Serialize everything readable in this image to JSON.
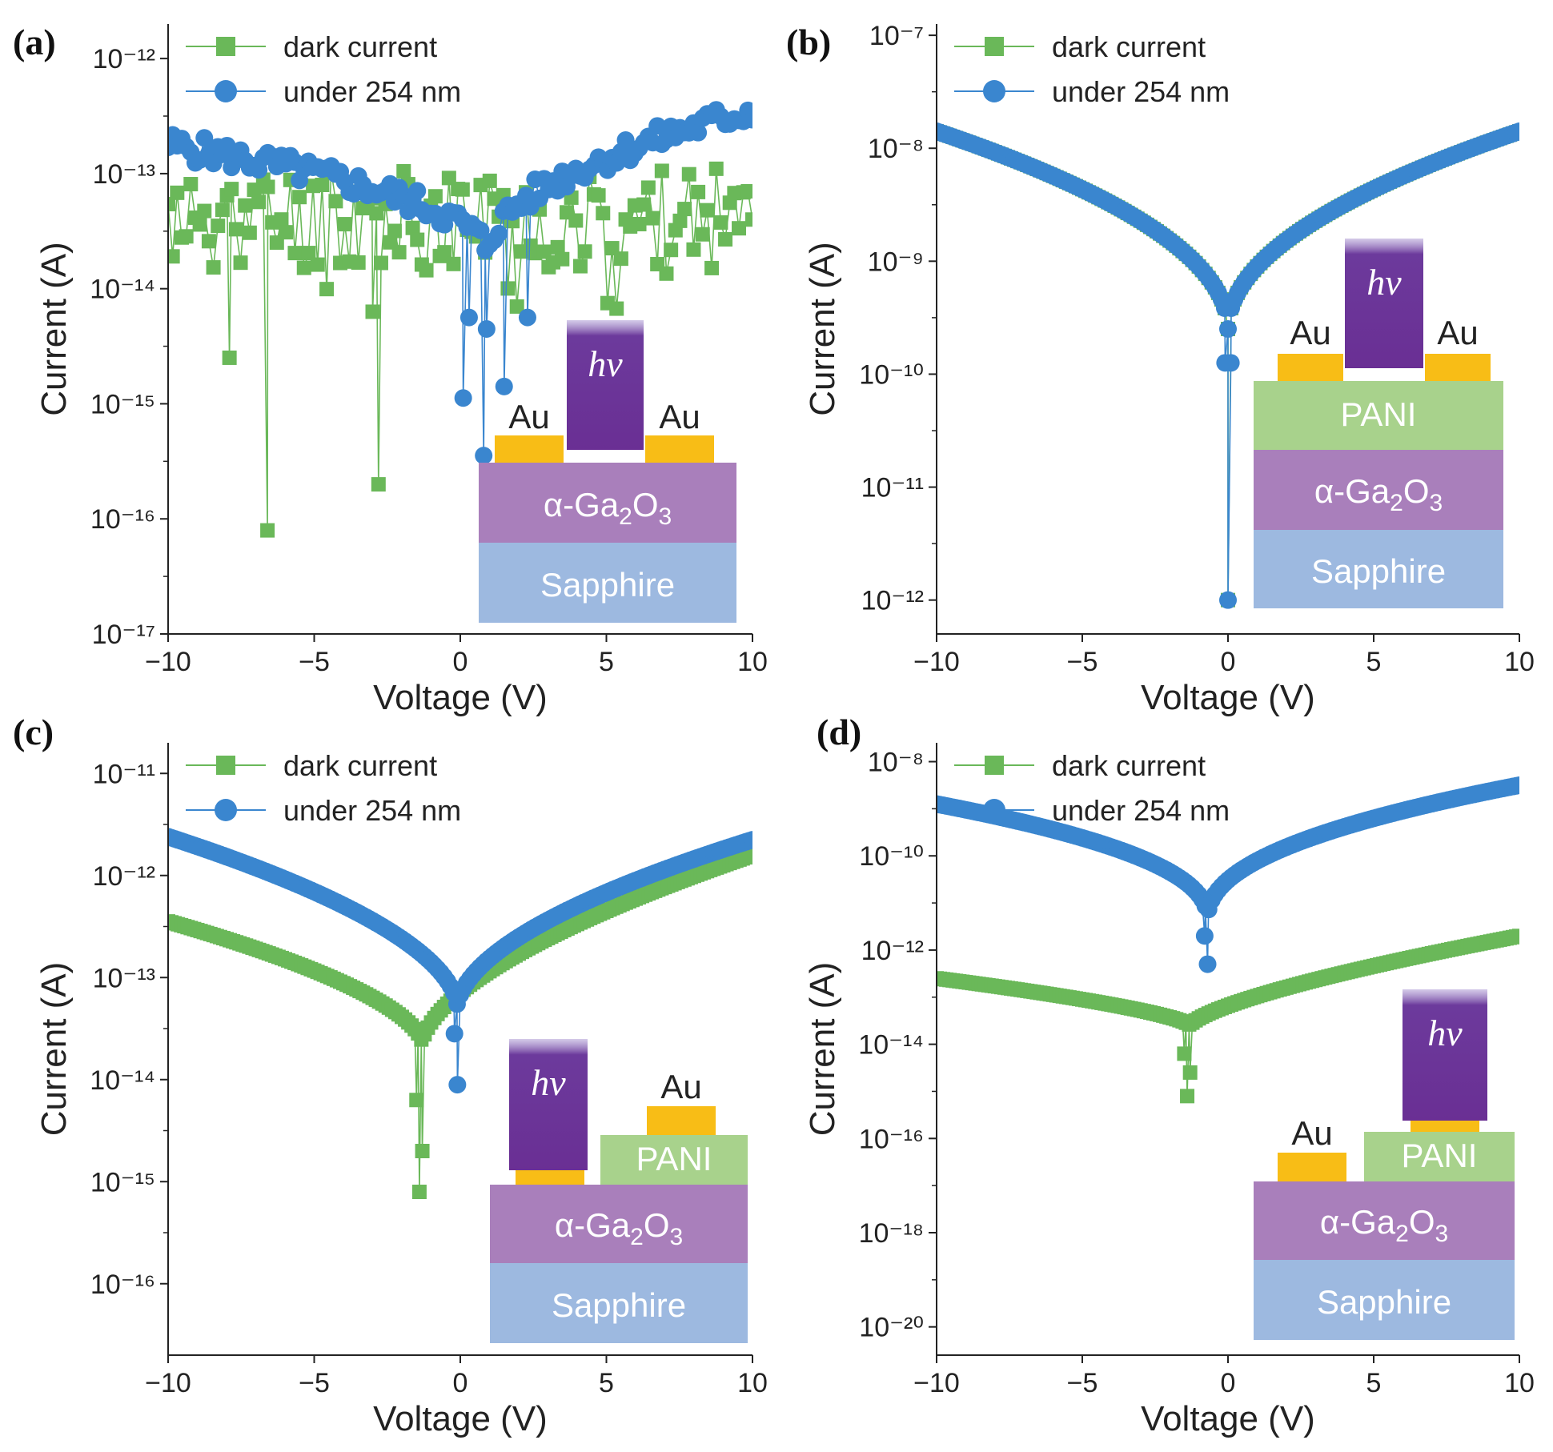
{
  "chart_data": [
    {
      "panel": "(a)",
      "type": "scatter",
      "xlabel": "Voltage (V)",
      "ylabel": "Current (A)",
      "xlim": [
        -10,
        10
      ],
      "ylim_log10": [
        -17,
        -11.7
      ],
      "x_ticks": [
        -10,
        -5,
        0,
        5,
        10
      ],
      "x_tick_labels": [
        "−10",
        "−5",
        "0",
        "5",
        "10"
      ],
      "y_tick_exponents": [
        -17,
        -16,
        -15,
        -14,
        -13,
        -12
      ],
      "y_tick_labels": [
        "10⁻¹⁷",
        "10⁻¹⁶",
        "10⁻¹⁵",
        "10⁻¹⁴",
        "10⁻¹³",
        "10⁻¹²"
      ],
      "legend_position": "top-left",
      "series": [
        {
          "name": "dark current",
          "marker": "square",
          "color": "#6ab859",
          "model": "noisy",
          "base": -13.4,
          "spread": 0.45,
          "seed": 11,
          "dips": [
            [
              -6.6,
              -16.1
            ],
            [
              -2.8,
              -15.7
            ],
            [
              -7.9,
              -14.6
            ],
            [
              -3.0,
              -14.2
            ]
          ]
        },
        {
          "name": "under 254 nm",
          "marker": "circle",
          "color": "#3a86cf",
          "model": "noisy_v",
          "left": -12.75,
          "right": -12.45,
          "bottom": -13.7,
          "vx": 0.9,
          "spread": 0.12,
          "seed": 5,
          "dips": [
            [
              0.8,
              -15.45
            ],
            [
              0.1,
              -14.95
            ],
            [
              1.5,
              -14.85
            ],
            [
              0.3,
              -14.25
            ],
            [
              0.9,
              -14.35
            ],
            [
              2.3,
              -14.25
            ]
          ]
        }
      ],
      "inset": {
        "hv": "hν",
        "au": "Au",
        "layers": [
          "α-Ga",
          "2",
          "O",
          "3"
        ],
        "substrate": "Sapphire",
        "type": "au-au"
      }
    },
    {
      "panel": "(b)",
      "type": "scatter",
      "xlabel": "Voltage (V)",
      "ylabel": "Current (A)",
      "xlim": [
        -10,
        10
      ],
      "ylim_log10": [
        -12.3,
        -6.9
      ],
      "x_ticks": [
        -10,
        -5,
        0,
        5,
        10
      ],
      "x_tick_labels": [
        "−10",
        "−5",
        "0",
        "5",
        "10"
      ],
      "y_tick_exponents": [
        -12,
        -11,
        -10,
        -9,
        -8,
        -7
      ],
      "y_tick_labels": [
        "10⁻¹²",
        "10⁻¹¹",
        "10⁻¹⁰",
        "10⁻⁹",
        "10⁻⁸",
        "10⁻⁷"
      ],
      "legend_position": "top-left",
      "series": [
        {
          "name": "dark current",
          "marker": "square",
          "color": "#6ab859",
          "model": "v",
          "left": -7.85,
          "right": -7.85,
          "vx": 0.0,
          "bottom": -9.6,
          "power": 0.5,
          "dips": [
            [
              0.0,
              -12.0
            ]
          ]
        },
        {
          "name": "under 254 nm",
          "marker": "circle",
          "color": "#3a86cf",
          "model": "v",
          "left": -7.85,
          "right": -7.85,
          "vx": 0.0,
          "bottom": -9.6,
          "power": 0.5,
          "dips": [
            [
              0.0,
              -12.0
            ],
            [
              -0.1,
              -9.9
            ],
            [
              0.1,
              -9.9
            ]
          ]
        }
      ],
      "inset": {
        "hv": "hν",
        "au": "Au",
        "pani": "PANI",
        "layers": [
          "α-Ga",
          "2",
          "O",
          "3"
        ],
        "substrate": "Sapphire",
        "type": "pani-top"
      }
    },
    {
      "panel": "(c)",
      "type": "scatter",
      "xlabel": "Voltage (V)",
      "ylabel": "Current (A)",
      "xlim": [
        -10,
        10
      ],
      "ylim_log10": [
        -16.7,
        -10.7
      ],
      "x_ticks": [
        -10,
        -5,
        0,
        5,
        10
      ],
      "x_tick_labels": [
        "−10",
        "−5",
        "0",
        "5",
        "10"
      ],
      "y_tick_exponents": [
        -16,
        -15,
        -14,
        -13,
        -12,
        -11
      ],
      "y_tick_labels": [
        "10⁻¹⁶",
        "10⁻¹⁵",
        "10⁻¹⁴",
        "10⁻¹³",
        "10⁻¹²",
        "10⁻¹¹"
      ],
      "legend_position": "top-left",
      "series": [
        {
          "name": "dark current",
          "marker": "square",
          "color": "#6ab859",
          "model": "v",
          "left": -12.45,
          "right": -11.8,
          "vx": -1.3,
          "bottom": -13.65,
          "power": 0.6,
          "dips": [
            [
              -1.4,
              -15.1
            ],
            [
              -1.3,
              -14.7
            ],
            [
              -1.5,
              -14.2
            ]
          ]
        },
        {
          "name": "under 254 nm",
          "marker": "circle",
          "color": "#3a86cf",
          "model": "v",
          "left": -11.62,
          "right": -11.65,
          "vx": -0.1,
          "bottom": -13.3,
          "power": 0.55,
          "dips": [
            [
              -0.1,
              -14.05
            ],
            [
              -0.2,
              -13.55
            ]
          ]
        }
      ],
      "inset": {
        "hv": "hν",
        "au": "Au",
        "pani": "PANI",
        "layers": [
          "α-Ga",
          "2",
          "O",
          "3"
        ],
        "substrate": "Sapphire",
        "type": "pani-side"
      }
    },
    {
      "panel": "(d)",
      "type": "scatter",
      "xlabel": "Voltage (V)",
      "ylabel": "Current (A)",
      "xlim": [
        -10,
        10
      ],
      "ylim_log10": [
        -20.6,
        -7.6
      ],
      "x_ticks": [
        -10,
        -5,
        0,
        5,
        10
      ],
      "x_tick_labels": [
        "−10",
        "−5",
        "0",
        "5",
        "10"
      ],
      "y_tick_exponents": [
        -20,
        -18,
        -16,
        -14,
        -12,
        -10,
        -8
      ],
      "y_tick_labels": [
        "10⁻²⁰",
        "10⁻¹⁸",
        "10⁻¹⁶",
        "10⁻¹⁴",
        "10⁻¹²",
        "10⁻¹⁰",
        "10⁻⁸"
      ],
      "legend_position": "top-left",
      "series": [
        {
          "name": "dark current",
          "marker": "square",
          "color": "#6ab859",
          "model": "v",
          "left": -12.6,
          "right": -11.7,
          "vx": -1.3,
          "bottom": -13.6,
          "power": 0.7,
          "dips": [
            [
              -1.5,
              -14.2
            ],
            [
              -1.3,
              -14.6
            ],
            [
              -1.4,
              -15.1
            ]
          ]
        },
        {
          "name": "under 254 nm",
          "marker": "circle",
          "color": "#3a86cf",
          "model": "v",
          "left": -8.9,
          "right": -8.5,
          "vx": -0.7,
          "bottom": -11.35,
          "power": 0.45,
          "dips": [
            [
              -0.7,
              -12.3
            ],
            [
              -0.8,
              -11.7
            ]
          ]
        }
      ],
      "inset": {
        "hv": "hν",
        "au": "Au",
        "pani": "PANI",
        "layers": [
          "α-Ga",
          "2",
          "O",
          "3"
        ],
        "substrate": "Sapphire",
        "type": "pani-right"
      }
    }
  ]
}
